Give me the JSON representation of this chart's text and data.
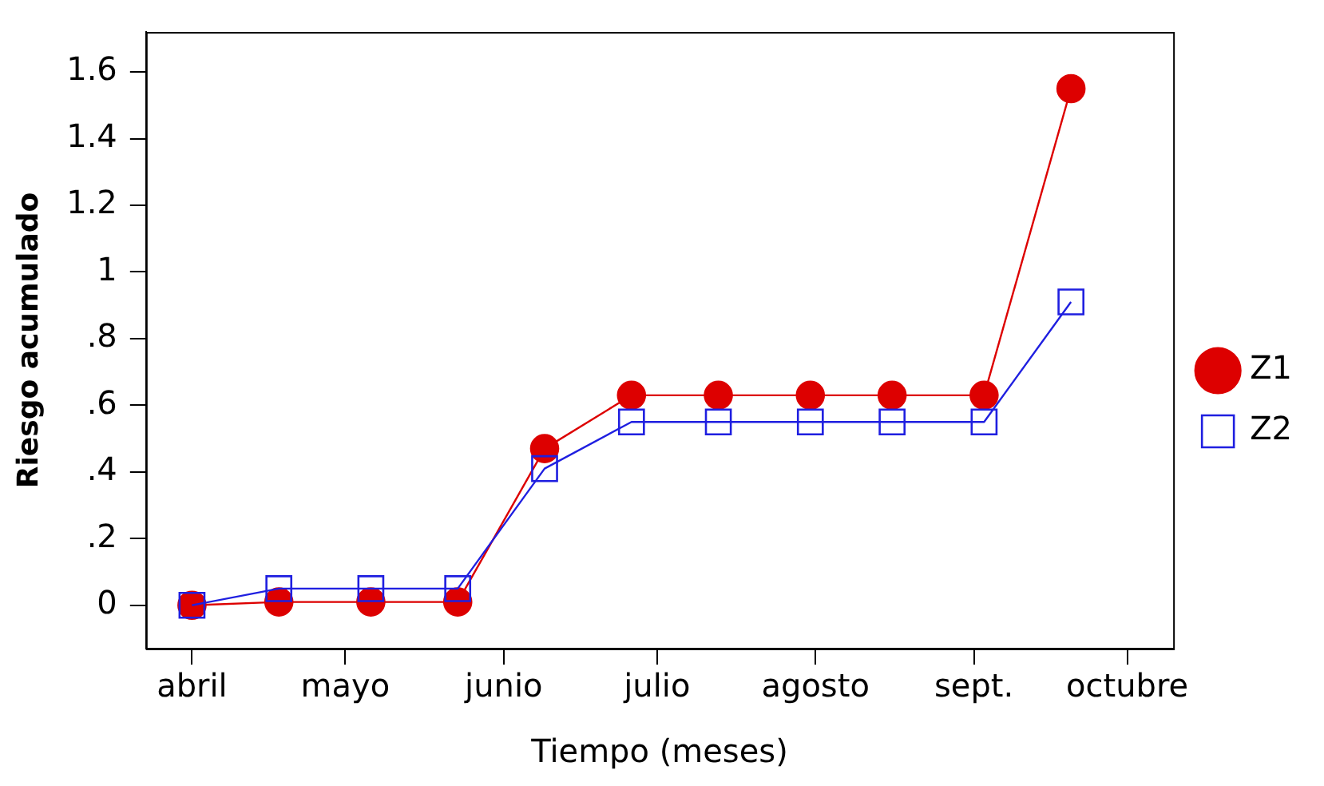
{
  "chart_data": {
    "type": "line",
    "xlabel": "Tiempo (meses)",
    "ylabel": "Riesgo acumulado",
    "x": [
      "--04-01",
      "--04-18",
      "--05-06",
      "--05-23",
      "--06-09",
      "--06-26",
      "--07-13",
      "--07-31",
      "--08-16",
      "--09-03",
      "--09-20"
    ],
    "series": [
      {
        "name": "Z1",
        "color": "#dd0000",
        "marker": "circle",
        "values": [
          0,
          0.01,
          0.01,
          0.01,
          0.47,
          0.63,
          0.63,
          0.63,
          0.63,
          0.63,
          1.55
        ]
      },
      {
        "name": "Z2",
        "color": "#1f1fe0",
        "marker": "square",
        "values": [
          0,
          0.05,
          0.05,
          0.05,
          0.41,
          0.55,
          0.55,
          0.55,
          0.55,
          0.55,
          0.91
        ]
      }
    ],
    "xlim": [
      "--03-23",
      "--10-10"
    ],
    "xticks": [
      {
        "value": "--04-01",
        "label": "abril"
      },
      {
        "value": "--05-01",
        "label": "mayo"
      },
      {
        "value": "--06-01",
        "label": "junio"
      },
      {
        "value": "--07-01",
        "label": "julio"
      },
      {
        "value": "--08-01",
        "label": "agosto"
      },
      {
        "value": "--09-01",
        "label": "sept."
      },
      {
        "value": "--10-01",
        "label": "octubre"
      }
    ],
    "ylim": [
      -0.13,
      1.72
    ],
    "yticks": [
      0,
      {
        "value": 0.2,
        "label": ".2"
      },
      {
        "value": 0.4,
        "label": ".4"
      },
      {
        "value": 0.6,
        "label": ".6"
      },
      {
        "value": 0.8,
        "label": ".8"
      },
      1,
      1.2,
      1.4,
      1.6
    ],
    "grid": false,
    "legend": "right",
    "line_style": "solid"
  }
}
